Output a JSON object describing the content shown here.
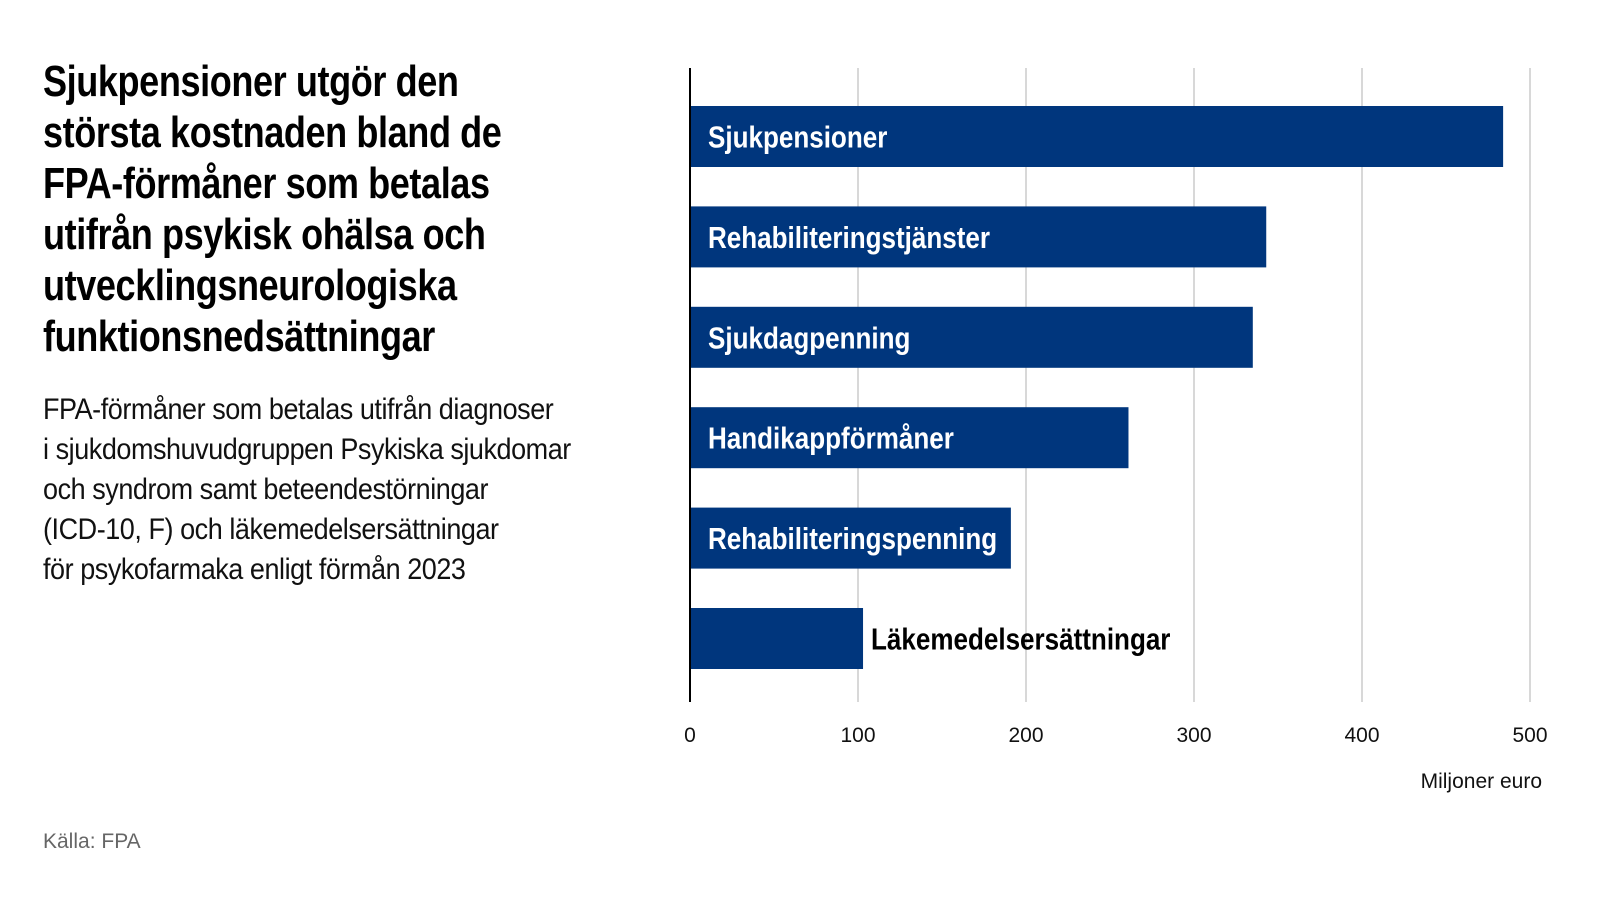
{
  "title_lines": [
    "Sjukpensioner utgör den",
    "största kostnaden bland de",
    "FPA-förmåner som betalas",
    "utifrån psykisk ohälsa och",
    "utvecklingsneurologiska",
    "funktionsnedsättningar"
  ],
  "subtitle_lines": [
    "FPA-förmåner som betalas utifrån diagnoser",
    "i sjukdomshuvudgruppen Psykiska sjukdomar",
    "och syndrom samt beteendestörningar",
    "(ICD-10, F) och läkemedelsersättningar",
    "för psykofarmaka enligt förmån 2023"
  ],
  "source": "Källa: FPA",
  "colors": {
    "bar": "#00367d",
    "grid": "#c4c4c4",
    "axis": "#000000"
  },
  "chart_data": {
    "type": "bar",
    "orientation": "horizontal",
    "categories": [
      "Sjukpensioner",
      "Rehabiliteringstjänster",
      "Sjukdagpenning",
      "Handikappförmåner",
      "Rehabiliteringspenning",
      "Läkemedelsersättningar"
    ],
    "values": [
      484,
      343,
      335,
      261,
      191,
      103
    ],
    "xlabel": "Miljoner euro",
    "xlim": [
      0,
      500
    ],
    "xticks": [
      0,
      100,
      200,
      300,
      400,
      500
    ],
    "grid": true
  }
}
